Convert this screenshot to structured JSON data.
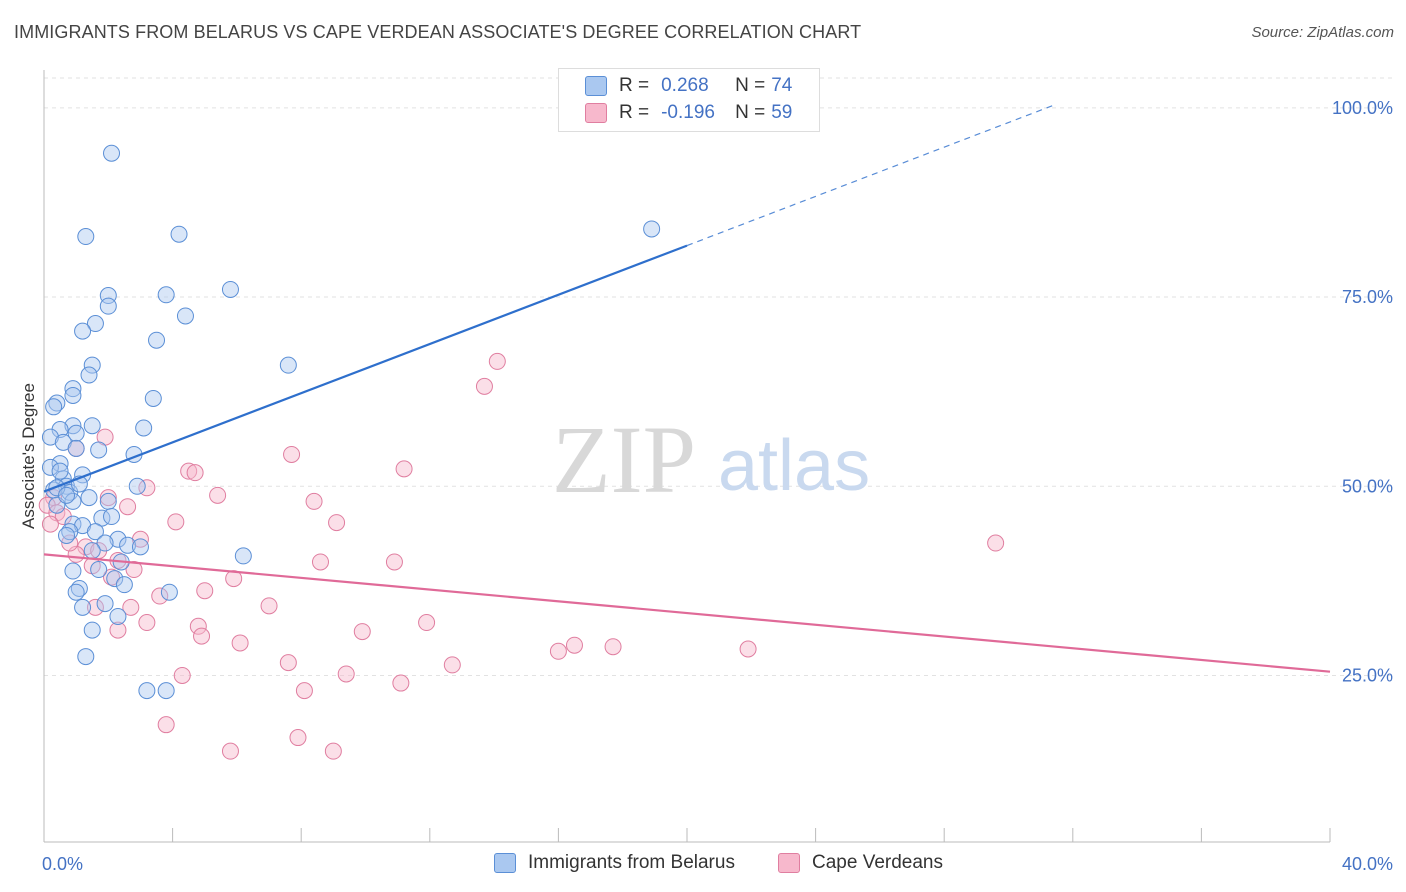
{
  "header": {
    "title": "IMMIGRANTS FROM BELARUS VS CAPE VERDEAN ASSOCIATE'S DEGREE CORRELATION CHART",
    "source": "Source: ZipAtlas.com"
  },
  "watermark": {
    "zip": "ZIP",
    "atlas": "atlas"
  },
  "legend": {
    "series1": {
      "r_label": "R =",
      "r_value": "0.268",
      "n_label": "N =",
      "n_value": "74"
    },
    "series2": {
      "r_label": "R =",
      "r_value": "-0.196",
      "n_label": "N =",
      "n_value": "59"
    }
  },
  "colors": {
    "blue_fill": "#aac8f0",
    "blue_stroke": "#5b8fd6",
    "blue_line": "#2e6fcc",
    "pink_fill": "#f7b8cc",
    "pink_stroke": "#e07ea0",
    "pink_line": "#e06a98",
    "grid": "#e2e2e2",
    "tick_text": "#4472c4"
  },
  "chart_data": {
    "type": "scatter",
    "title": "IMMIGRANTS FROM BELARUS VS CAPE VERDEAN ASSOCIATE'S DEGREE CORRELATION CHART",
    "xlabel": "",
    "ylabel": "Associate's Degree",
    "xlim": [
      0,
      40
    ],
    "ylim": [
      3,
      105
    ],
    "x_tick_labels": [
      "0.0%",
      "40.0%"
    ],
    "y_ticks": [
      25,
      50,
      75,
      100
    ],
    "y_tick_labels": [
      "25.0%",
      "50.0%",
      "75.0%",
      "100.0%"
    ],
    "grid": true,
    "legend_position": "top-center",
    "series": [
      {
        "name": "Immigrants from Belarus",
        "color": "blue",
        "R": 0.268,
        "N": 74,
        "trend": {
          "x": [
            0,
            20
          ],
          "y": [
            49.3,
            81.8
          ],
          "dashed_x": [
            20,
            31.5
          ],
          "dashed_y": [
            81.8,
            100.5
          ]
        },
        "points": [
          [
            2.1,
            94.0
          ],
          [
            1.3,
            83.0
          ],
          [
            4.2,
            83.3
          ],
          [
            18.9,
            84.0
          ],
          [
            2.0,
            75.2
          ],
          [
            3.8,
            75.3
          ],
          [
            5.8,
            76.0
          ],
          [
            2.0,
            73.8
          ],
          [
            1.6,
            71.5
          ],
          [
            1.2,
            70.5
          ],
          [
            4.4,
            72.5
          ],
          [
            3.5,
            69.3
          ],
          [
            1.5,
            66.0
          ],
          [
            7.6,
            66.0
          ],
          [
            1.4,
            64.7
          ],
          [
            0.9,
            62.9
          ],
          [
            3.4,
            61.6
          ],
          [
            0.9,
            62.0
          ],
          [
            0.4,
            61.0
          ],
          [
            0.3,
            60.5
          ],
          [
            1.5,
            58.0
          ],
          [
            0.9,
            58.0
          ],
          [
            3.1,
            57.7
          ],
          [
            0.5,
            57.5
          ],
          [
            1.0,
            57.0
          ],
          [
            0.2,
            56.5
          ],
          [
            0.6,
            55.8
          ],
          [
            1.7,
            54.8
          ],
          [
            2.8,
            54.2
          ],
          [
            0.5,
            53.0
          ],
          [
            0.2,
            52.5
          ],
          [
            1.2,
            51.5
          ],
          [
            0.6,
            51.0
          ],
          [
            0.7,
            50.0
          ],
          [
            2.9,
            50.0
          ],
          [
            0.3,
            49.5
          ],
          [
            0.8,
            49.2
          ],
          [
            1.4,
            48.5
          ],
          [
            2.0,
            48.0
          ],
          [
            0.9,
            48.0
          ],
          [
            0.4,
            47.5
          ],
          [
            1.8,
            45.8
          ],
          [
            0.9,
            45.0
          ],
          [
            1.2,
            44.8
          ],
          [
            1.6,
            44.0
          ],
          [
            0.8,
            44.0
          ],
          [
            0.7,
            43.5
          ],
          [
            2.3,
            43.0
          ],
          [
            1.9,
            42.5
          ],
          [
            2.6,
            42.2
          ],
          [
            3.0,
            42.0
          ],
          [
            1.5,
            41.5
          ],
          [
            6.2,
            40.8
          ],
          [
            2.4,
            40.0
          ],
          [
            1.7,
            39.0
          ],
          [
            0.9,
            38.8
          ],
          [
            2.2,
            37.8
          ],
          [
            2.5,
            37.0
          ],
          [
            1.1,
            36.5
          ],
          [
            1.0,
            36.0
          ],
          [
            3.9,
            36.0
          ],
          [
            1.9,
            34.5
          ],
          [
            1.2,
            34.0
          ],
          [
            2.3,
            32.8
          ],
          [
            1.5,
            31.0
          ],
          [
            1.3,
            27.5
          ],
          [
            3.2,
            23.0
          ],
          [
            3.8,
            23.0
          ],
          [
            0.4,
            49.8
          ],
          [
            1.1,
            50.3
          ],
          [
            0.7,
            48.8
          ],
          [
            2.1,
            46.0
          ],
          [
            0.5,
            52.0
          ],
          [
            1.0,
            55.0
          ]
        ]
      },
      {
        "name": "Cape Verdeans",
        "color": "pink",
        "R": -0.196,
        "N": 59,
        "trend": {
          "x": [
            0,
            40
          ],
          "y": [
            41.0,
            25.5
          ]
        },
        "points": [
          [
            14.1,
            66.5
          ],
          [
            13.7,
            63.2
          ],
          [
            1.9,
            56.5
          ],
          [
            1.0,
            55.0
          ],
          [
            7.7,
            54.2
          ],
          [
            11.2,
            52.3
          ],
          [
            4.5,
            52.0
          ],
          [
            4.7,
            51.8
          ],
          [
            3.2,
            49.8
          ],
          [
            5.4,
            48.8
          ],
          [
            8.4,
            48.0
          ],
          [
            0.3,
            48.5
          ],
          [
            2.0,
            48.5
          ],
          [
            0.1,
            47.5
          ],
          [
            2.6,
            47.3
          ],
          [
            0.4,
            46.5
          ],
          [
            0.6,
            46.0
          ],
          [
            4.1,
            45.3
          ],
          [
            9.1,
            45.2
          ],
          [
            3.0,
            43.0
          ],
          [
            29.6,
            42.5
          ],
          [
            1.3,
            42.0
          ],
          [
            1.7,
            41.5
          ],
          [
            1.0,
            41.0
          ],
          [
            2.3,
            40.2
          ],
          [
            8.6,
            40.0
          ],
          [
            10.9,
            40.0
          ],
          [
            2.8,
            39.0
          ],
          [
            5.9,
            37.8
          ],
          [
            5.0,
            36.2
          ],
          [
            3.6,
            35.5
          ],
          [
            7.0,
            34.2
          ],
          [
            1.6,
            34.0
          ],
          [
            2.7,
            34.0
          ],
          [
            3.2,
            32.0
          ],
          [
            11.9,
            32.0
          ],
          [
            4.8,
            31.5
          ],
          [
            9.9,
            30.8
          ],
          [
            2.3,
            31.0
          ],
          [
            4.9,
            30.2
          ],
          [
            6.1,
            29.3
          ],
          [
            16.5,
            29.0
          ],
          [
            17.7,
            28.8
          ],
          [
            21.9,
            28.5
          ],
          [
            16.0,
            28.2
          ],
          [
            7.6,
            26.7
          ],
          [
            12.7,
            26.4
          ],
          [
            9.4,
            25.2
          ],
          [
            4.3,
            25.0
          ],
          [
            11.1,
            24.0
          ],
          [
            8.1,
            23.0
          ],
          [
            3.8,
            18.5
          ],
          [
            7.9,
            16.8
          ],
          [
            5.8,
            15.0
          ],
          [
            9.0,
            15.0
          ],
          [
            0.2,
            45.0
          ],
          [
            1.5,
            39.5
          ],
          [
            0.8,
            42.5
          ],
          [
            2.1,
            38.0
          ]
        ]
      }
    ]
  },
  "bottom_legend": {
    "series1": "Immigrants from Belarus",
    "series2": "Cape Verdeans"
  }
}
